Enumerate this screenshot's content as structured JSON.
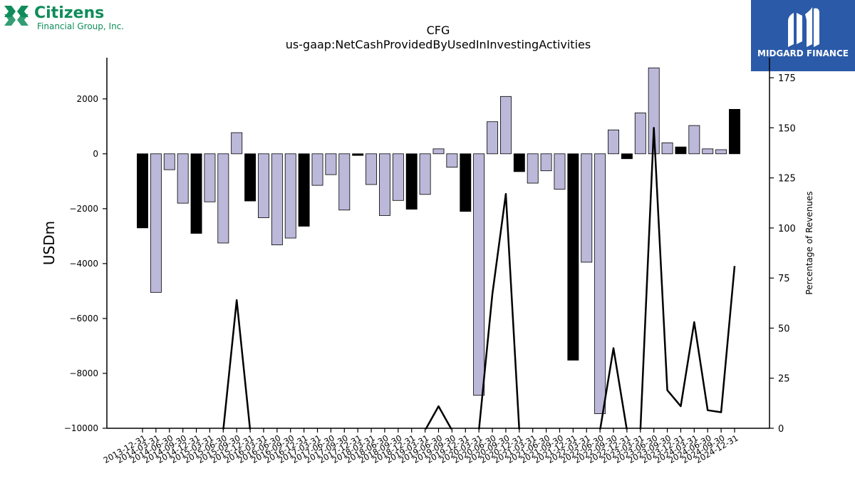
{
  "brand": {
    "left_logo": {
      "name": "Citizens",
      "subtitle": "Financial Group, Inc.",
      "color": "#0f8c5a"
    },
    "right_logo": {
      "name": "MIDGARD FINANCE",
      "bg": "#2b5aa8"
    }
  },
  "chart_data": {
    "type": "bar",
    "title": "CFG",
    "subtitle": "us-gaap:NetCashProvidedByUsedInInvestingActivities",
    "ylabel": "USDm",
    "y2label": "Percentage of Revenues",
    "ylim": [
      -10000,
      3500
    ],
    "y2lim": [
      0,
      185
    ],
    "yticks": [
      -10000,
      -8000,
      -6000,
      -4000,
      -2000,
      0,
      2000
    ],
    "y2ticks": [
      0,
      25,
      50,
      75,
      100,
      125,
      150,
      175
    ],
    "colors": {
      "annual": "#000000",
      "quarterly": "#bcb8d9",
      "edge": "#000000",
      "line": "#000000"
    },
    "categories": [
      "2013-12-31",
      "2014-03-31",
      "2014-06-30",
      "2014-09-30",
      "2014-12-31",
      "2015-03-31",
      "2015-06-30",
      "2015-09-30",
      "2015-12-31",
      "2016-03-31",
      "2016-06-30",
      "2016-09-30",
      "2016-12-31",
      "2017-03-31",
      "2017-06-30",
      "2017-09-30",
      "2017-12-31",
      "2018-03-31",
      "2018-06-30",
      "2018-09-30",
      "2018-12-31",
      "2019-03-31",
      "2019-06-30",
      "2019-09-30",
      "2019-12-31",
      "2020-03-31",
      "2020-06-30",
      "2020-09-30",
      "2020-12-31",
      "2021-03-31",
      "2021-06-30",
      "2021-09-30",
      "2021-12-31",
      "2022-03-31",
      "2022-06-30",
      "2022-09-30",
      "2022-12-31",
      "2023-03-31",
      "2023-06-30",
      "2023-09-30",
      "2023-12-31",
      "2024-03-31",
      "2024-06-30",
      "2024-09-30",
      "2024-12-31"
    ],
    "values": [
      -2700,
      -5050,
      -580,
      -1800,
      -2900,
      -1750,
      -3250,
      770,
      -1720,
      -2330,
      -3320,
      -3070,
      -2640,
      -1150,
      -760,
      -2050,
      -60,
      -1120,
      -2250,
      -1700,
      -2020,
      -1480,
      180,
      -490,
      -2100,
      -8800,
      1170,
      2090,
      -650,
      -1070,
      -620,
      -1290,
      -7520,
      -3950,
      -9470,
      870,
      -180,
      1490,
      3130,
      400,
      250,
      1030,
      180,
      150,
      1620
    ],
    "series_type": [
      "annual",
      "quarterly",
      "quarterly",
      "quarterly",
      "annual",
      "quarterly",
      "quarterly",
      "quarterly",
      "annual",
      "quarterly",
      "quarterly",
      "quarterly",
      "annual",
      "quarterly",
      "quarterly",
      "quarterly",
      "annual",
      "quarterly",
      "quarterly",
      "quarterly",
      "annual",
      "quarterly",
      "quarterly",
      "quarterly",
      "annual",
      "quarterly",
      "quarterly",
      "quarterly",
      "annual",
      "quarterly",
      "quarterly",
      "quarterly",
      "annual",
      "quarterly",
      "quarterly",
      "quarterly",
      "annual",
      "quarterly",
      "quarterly",
      "quarterly",
      "annual",
      "quarterly",
      "quarterly",
      "quarterly",
      "annual"
    ],
    "line_values": [
      -1,
      -1,
      -1,
      -1,
      -1,
      -1,
      -1,
      64,
      -1,
      -1,
      -1,
      -1,
      -1,
      -1,
      -1,
      -1,
      -1,
      -1,
      -1,
      -1,
      -1,
      -1,
      11,
      -1,
      -1,
      -1,
      67,
      117,
      -1,
      -1,
      -1,
      -1,
      -1,
      -1,
      -1,
      40,
      -1,
      -1,
      150,
      19,
      11,
      53,
      9,
      8,
      81
    ]
  }
}
